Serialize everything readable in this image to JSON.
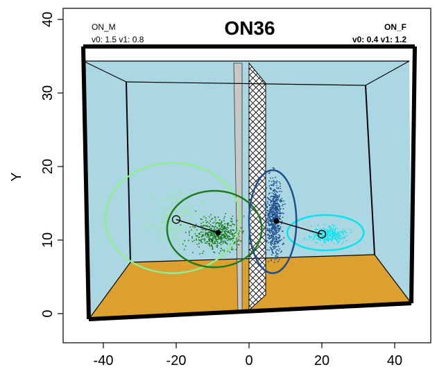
{
  "chart_data": {
    "type": "scatter",
    "title": "ON36",
    "xlabel": "",
    "ylabel": "Y",
    "xlim": [
      -47,
      50
    ],
    "ylim": [
      -4.5,
      41
    ],
    "xticks": [
      -40,
      -20,
      0,
      20,
      40
    ],
    "yticks": [
      0,
      10,
      20,
      30,
      40
    ],
    "x_tick_labels": [
      "-40",
      "-20",
      "0",
      "20",
      "40"
    ],
    "y_tick_labels": [
      "0",
      "10",
      "20",
      "30",
      "40"
    ],
    "annotations": {
      "left_name": "ON_M",
      "left_params": "v0: 1.5 v1: 0.8",
      "right_name": "ON_F",
      "right_params": "v0: 0.4 v1: 1.2"
    },
    "colors": {
      "tank_water": "#abd7e3",
      "tank_floor": "#dba02d",
      "partition_solid": "#c8c8c8",
      "partition_mesh": "#000000",
      "male_home": "#90ee90",
      "male_trial": "#1e7a1e",
      "female_home": "#00e5ee",
      "female_trial": "#1f4e8c"
    },
    "series": [
      {
        "name": "ON_M",
        "home_centroid": [
          -20,
          12.8
        ],
        "trial_centroid": [
          -8.5,
          11
        ],
        "home_ellipse": {
          "center": [
            -21,
            13
          ],
          "rx": 18.5,
          "ry": 7.5
        },
        "trial_ellipse": {
          "center": [
            -9.5,
            11.5
          ],
          "rx": 13,
          "ry": 5.2
        }
      },
      {
        "name": "ON_F",
        "home_centroid": [
          20,
          10.8
        ],
        "trial_centroid": [
          7.5,
          12.6
        ],
        "home_ellipse": {
          "center": [
            21,
            11
          ],
          "rx": 10.5,
          "ry": 2.4
        },
        "trial_ellipse": {
          "center": [
            6.5,
            12.5
          ],
          "rx": 6.5,
          "ry": 7
        }
      }
    ]
  }
}
